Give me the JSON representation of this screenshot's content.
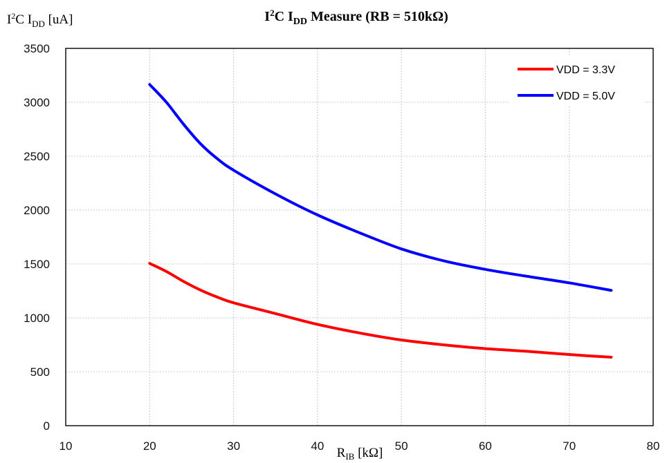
{
  "chart_data": {
    "type": "line",
    "title": "I²C I_DD Measure (RB = 510kΩ)",
    "title_parts": {
      "t1": "I",
      "t2": "2",
      "t3": "C I",
      "t4": "DD",
      "t5": " Measure (RB = 510kΩ)"
    },
    "ylabel": "I²C I_DD [uA]",
    "ylabel_parts": {
      "y1": "I",
      "y2": "2",
      "y3": "C I",
      "y4": "DD",
      "y5": " [uA]"
    },
    "xlabel": "R_IB [kΩ]",
    "xlabel_parts": {
      "x1": "R",
      "x2": "IB",
      "x3": " [kΩ]"
    },
    "xlim": [
      10,
      80
    ],
    "ylim": [
      0,
      3500
    ],
    "x_ticks": [
      10,
      20,
      30,
      40,
      50,
      60,
      70,
      80
    ],
    "y_ticks": [
      0,
      500,
      1000,
      1500,
      2000,
      2500,
      3000,
      3500
    ],
    "grid": true,
    "legend_position": "top-right",
    "series": [
      {
        "name": "VDD = 3.3V",
        "color": "#ff0000",
        "x": [
          20,
          22,
          24,
          26,
          28,
          30,
          35,
          40,
          45,
          50,
          55,
          60,
          65,
          70,
          75
        ],
        "y": [
          1505,
          1430,
          1340,
          1260,
          1195,
          1140,
          1040,
          940,
          860,
          795,
          750,
          715,
          690,
          660,
          635
        ]
      },
      {
        "name": "VDD = 5.0V",
        "color": "#0000ff",
        "x": [
          20,
          22,
          24,
          26,
          28,
          30,
          35,
          40,
          45,
          50,
          55,
          60,
          65,
          70,
          75
        ],
        "y": [
          3165,
          3000,
          2800,
          2620,
          2480,
          2370,
          2150,
          1955,
          1790,
          1640,
          1530,
          1450,
          1385,
          1325,
          1255
        ]
      }
    ]
  }
}
